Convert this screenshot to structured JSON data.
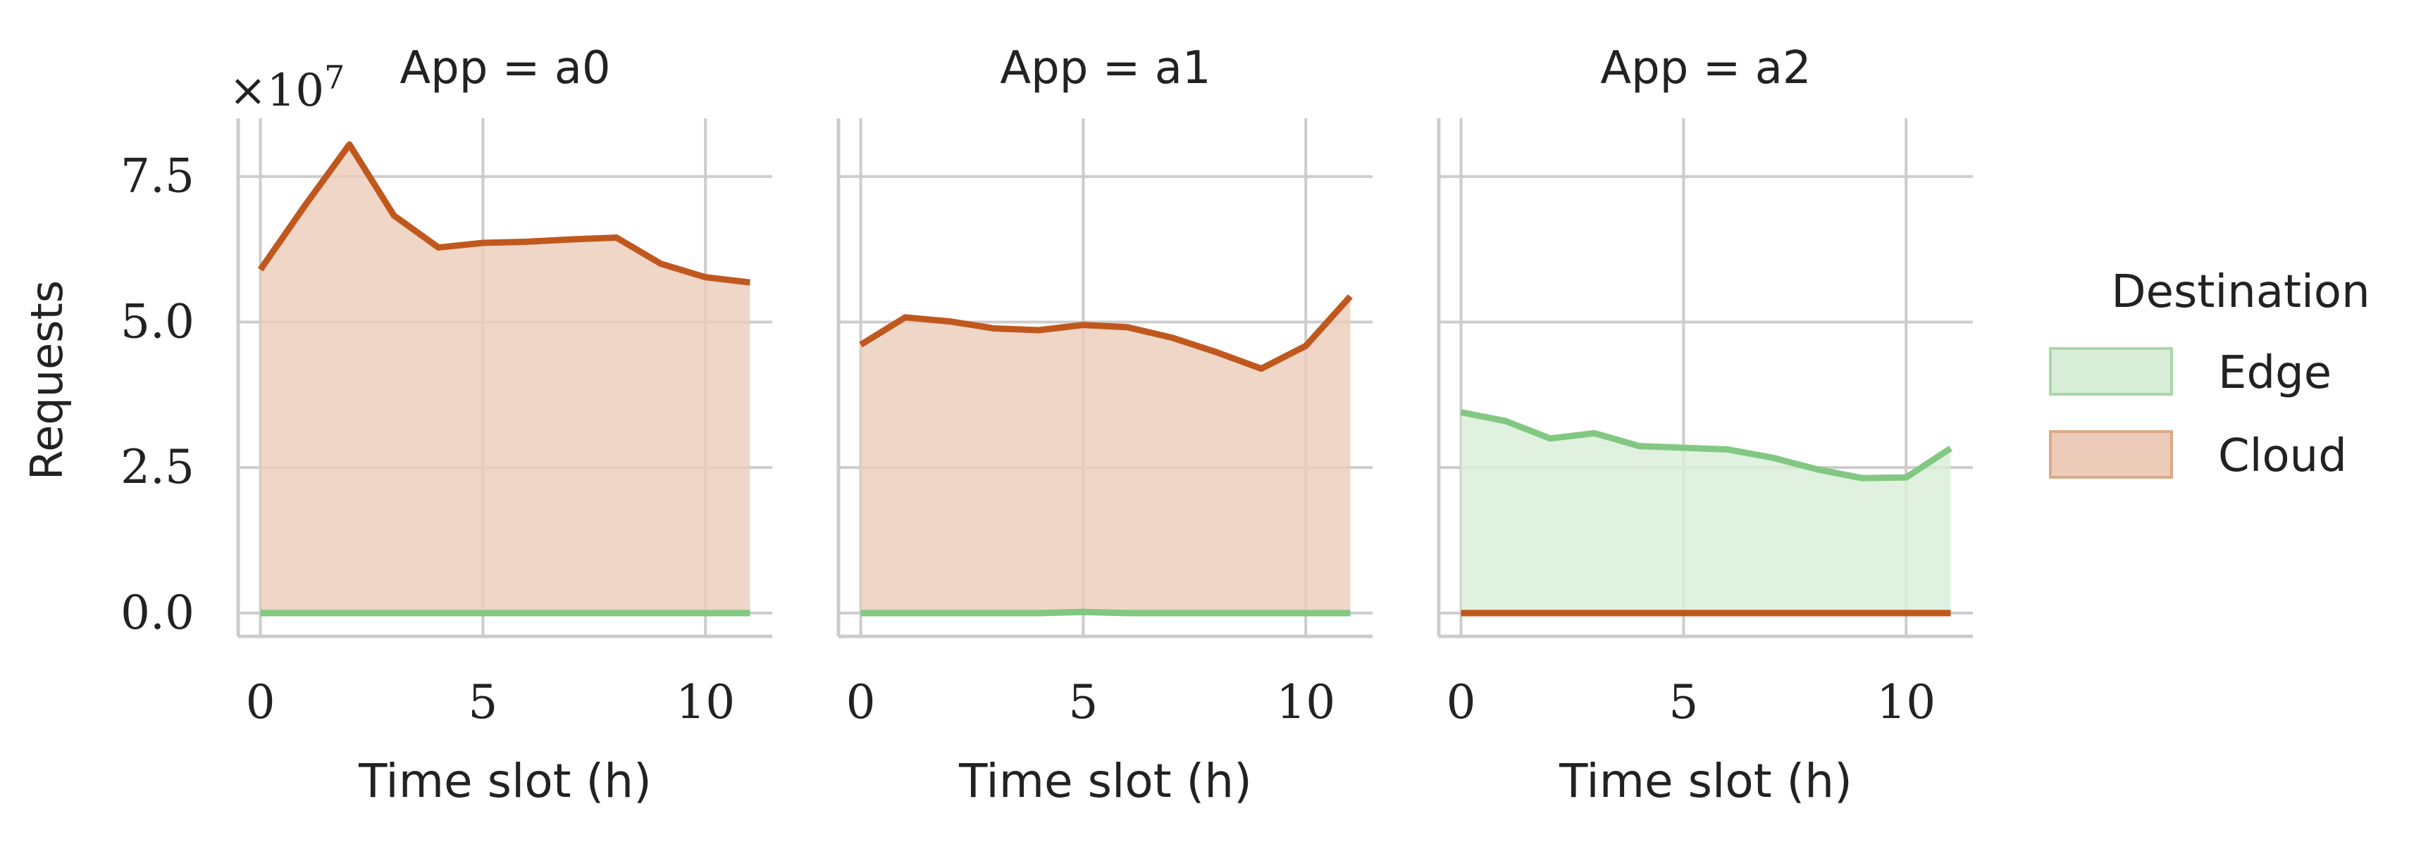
{
  "chart_data": {
    "type": "area",
    "subplots": [
      {
        "title": "App = a0",
        "x": [
          0,
          1,
          2,
          3,
          4,
          5,
          6,
          7,
          8,
          9,
          10,
          11
        ],
        "series": [
          {
            "name": "Edge",
            "values": [
              0,
              0,
              0,
              0,
              0,
              0,
              0,
              0,
              0,
              0,
              0,
              0
            ]
          },
          {
            "name": "Cloud",
            "values": [
              59000000,
              70000000,
              80500000,
              68300000,
              62800000,
              63600000,
              63800000,
              64200000,
              64500000,
              60000000,
              57700000,
              56800000
            ]
          }
        ]
      },
      {
        "title": "App = a1",
        "x": [
          0,
          1,
          2,
          3,
          4,
          5,
          6,
          7,
          8,
          9,
          10,
          11
        ],
        "series": [
          {
            "name": "Edge",
            "values": [
              0,
              0,
              0,
              0,
              0,
              200000,
              0,
              0,
              0,
              0,
              0,
              0
            ]
          },
          {
            "name": "Cloud",
            "values": [
              46100000,
              50800000,
              50100000,
              48900000,
              48600000,
              49500000,
              49100000,
              47300000,
              44800000,
              42000000,
              45900000,
              54400000
            ]
          }
        ]
      },
      {
        "title": "App = a2",
        "x": [
          0,
          1,
          2,
          3,
          4,
          5,
          6,
          7,
          8,
          9,
          10,
          11
        ],
        "series": [
          {
            "name": "Edge",
            "values": [
              34500000,
              33000000,
              30000000,
              30900000,
              28700000,
              28400000,
              28100000,
              26700000,
              24700000,
              23200000,
              23300000,
              28300000
            ]
          },
          {
            "name": "Cloud",
            "values": [
              0,
              0,
              0,
              0,
              0,
              0,
              0,
              0,
              0,
              0,
              0,
              0
            ]
          }
        ]
      }
    ],
    "xlabel": "Time slot (h)",
    "ylabel": "Requests",
    "y_multiplier": "×10",
    "y_multiplier_exp": "7",
    "y_scale": 10000000,
    "xlim": [
      -0.5,
      11.5
    ],
    "ylim": [
      -4000000,
      85000000
    ],
    "x_ticks": [
      0,
      5,
      10
    ],
    "x_tick_labels": [
      "0",
      "5",
      "10"
    ],
    "y_ticks": [
      0,
      25000000,
      50000000,
      75000000
    ],
    "y_tick_labels": [
      "0.0",
      "2.5",
      "5.0",
      "7.5"
    ],
    "grid": true,
    "legend": {
      "title": "Destination",
      "placement": "right",
      "entries": [
        "Edge",
        "Cloud"
      ]
    },
    "colors": {
      "Edge": "#82c882",
      "Cloud": "#c0581e",
      "Edge_fill": "#d8eed8",
      "Cloud_fill": "#ecccb8"
    }
  }
}
